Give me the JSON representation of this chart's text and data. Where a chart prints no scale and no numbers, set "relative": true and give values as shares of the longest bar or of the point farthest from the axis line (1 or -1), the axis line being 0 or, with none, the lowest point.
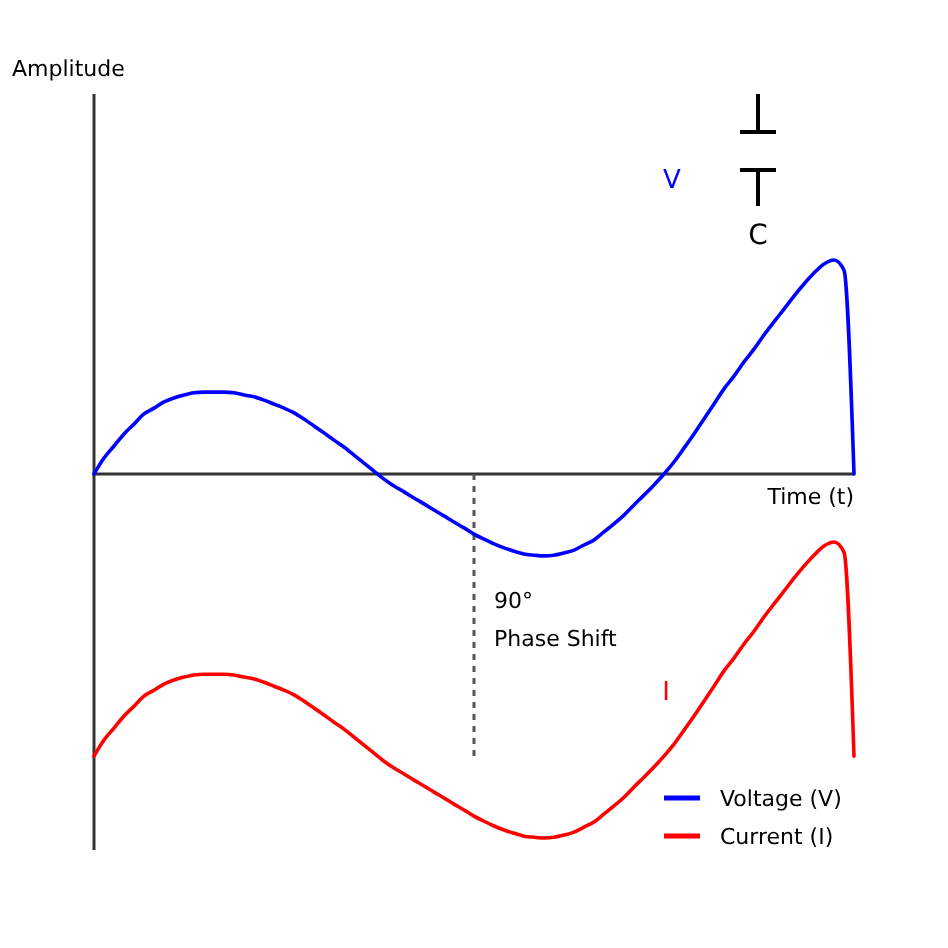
{
  "chart_data": {
    "type": "line",
    "relative": true,
    "xlabel": "Time (t)",
    "categories": [
      null,
      null,
      null,
      null,
      null,
      null,
      null,
      null,
      null,
      null,
      null,
      null,
      null,
      null,
      null,
      null,
      null,
      null,
      null,
      null,
      null,
      null,
      null,
      null,
      null,
      null,
      null,
      null,
      null,
      null,
      null,
      null,
      null,
      null,
      null,
      null,
      null,
      null,
      null,
      null,
      null,
      null,
      null,
      null,
      null,
      null,
      null,
      null,
      null,
      null,
      null,
      null,
      null,
      null,
      null,
      null,
      null,
      null,
      null,
      null,
      null,
      null,
      null,
      null,
      null,
      null,
      null,
      null,
      null,
      null,
      null,
      null,
      null,
      null,
      null,
      null,
      null
    ],
    "series": [
      {
        "name": "Voltage (V)",
        "color": "#0000ff",
        "values": [
          0,
          0.044,
          0.077,
          0.11,
          0.137,
          0.165,
          0.181,
          0.198,
          0.209,
          0.217,
          0.223,
          0.225,
          0.225,
          0.225,
          0.223,
          0.217,
          0.212,
          0.203,
          0.192,
          0.181,
          0.168,
          0.151,
          0.132,
          0.113,
          0.093,
          0.074,
          0.052,
          0.03,
          0.008,
          -0.014,
          -0.033,
          -0.049,
          -0.066,
          -0.082,
          -0.099,
          -0.115,
          -0.132,
          -0.148,
          -0.165,
          -0.179,
          -0.192,
          -0.203,
          -0.212,
          -0.22,
          -0.223,
          -0.225,
          -0.223,
          -0.217,
          -0.209,
          -0.195,
          -0.181,
          -0.159,
          -0.137,
          -0.113,
          -0.085,
          -0.058,
          -0.03,
          0,
          0.033,
          0.071,
          0.11,
          0.151,
          0.192,
          0.234,
          0.269,
          0.308,
          0.343,
          0.382,
          0.418,
          0.453,
          0.489,
          0.522,
          0.552,
          0.577,
          0.588,
          0.56,
          0
        ]
      },
      {
        "name": "Current (I)",
        "color": "#ff0000",
        "values": [
          -0.775,
          -0.731,
          -0.698,
          -0.665,
          -0.638,
          -0.61,
          -0.594,
          -0.577,
          -0.566,
          -0.558,
          -0.552,
          -0.55,
          -0.55,
          -0.55,
          -0.552,
          -0.558,
          -0.563,
          -0.572,
          -0.583,
          -0.594,
          -0.607,
          -0.624,
          -0.643,
          -0.662,
          -0.682,
          -0.701,
          -0.723,
          -0.745,
          -0.767,
          -0.789,
          -0.808,
          -0.824,
          -0.841,
          -0.857,
          -0.874,
          -0.89,
          -0.907,
          -0.923,
          -0.94,
          -0.954,
          -0.967,
          -0.978,
          -0.987,
          -0.995,
          -0.998,
          -1,
          -0.998,
          -0.992,
          -0.984,
          -0.97,
          -0.956,
          -0.934,
          -0.912,
          -0.888,
          -0.86,
          -0.833,
          -0.805,
          -0.775,
          -0.742,
          -0.704,
          -0.665,
          -0.624,
          -0.583,
          -0.541,
          -0.506,
          -0.467,
          -0.432,
          -0.393,
          -0.357,
          -0.322,
          -0.286,
          -0.253,
          -0.223,
          -0.198,
          -0.187,
          -0.215,
          -0.775
        ]
      }
    ],
    "annotations": [
      "V",
      "I",
      "C",
      "90°\nPhase Shift",
      "Amplitude"
    ],
    "legend": "bottom right"
  }
}
